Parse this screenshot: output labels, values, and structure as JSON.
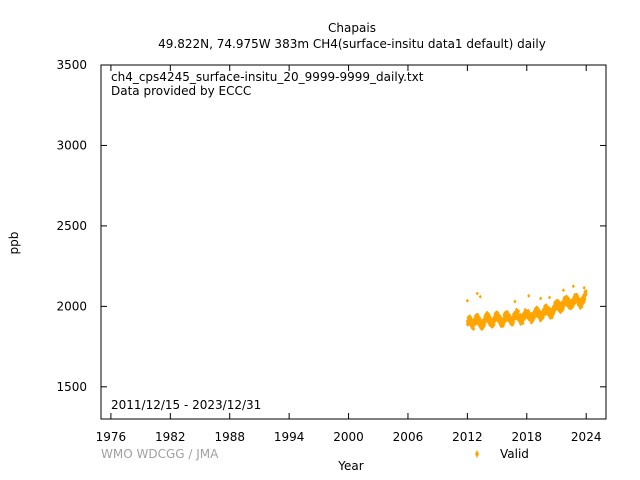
{
  "chart_data": {
    "type": "scatter",
    "title": "Chapais",
    "subtitle": "49.822N, 74.975W 383m    CH4(surface-insitu data1 default) daily",
    "xlabel": "Year",
    "ylabel": "ppb",
    "xlim": [
      1975,
      2026
    ],
    "ylim": [
      1300,
      3500
    ],
    "xticks": [
      1976,
      1982,
      1988,
      1994,
      2000,
      2006,
      2012,
      2018,
      2024
    ],
    "yticks": [
      1500,
      2000,
      2500,
      3000,
      3500
    ],
    "annotations": {
      "filename": "ch4_cps4245_surface-insitu_20_9999-9999_daily.txt",
      "provider": "Data provided by ECCC",
      "period": "2011/12/15 - 2023/12/31",
      "credit": "WMO WDCGG / JMA"
    },
    "legend": {
      "position": "bottom-right"
    },
    "series": [
      {
        "name": "Valid",
        "color": "#ffa500",
        "marker": "diamond",
        "summary": "daily values from 2011.96 to 2024.0; low band ~1870 rising to ~1990, seasonal amplitude ~80 ppb, occasional spikes to ~2120",
        "x": [
          2012.0,
          2012.2,
          2012.4,
          2012.6,
          2012.8,
          2013.0,
          2013.2,
          2013.4,
          2013.6,
          2013.8,
          2014.0,
          2014.2,
          2014.4,
          2014.6,
          2014.8,
          2015.0,
          2015.2,
          2015.4,
          2015.6,
          2015.8,
          2016.0,
          2016.2,
          2016.4,
          2016.6,
          2016.8,
          2017.0,
          2017.2,
          2017.4,
          2017.6,
          2017.8,
          2018.0,
          2018.2,
          2018.4,
          2018.6,
          2018.8,
          2019.0,
          2019.2,
          2019.4,
          2019.6,
          2019.8,
          2020.0,
          2020.2,
          2020.4,
          2020.6,
          2020.8,
          2021.0,
          2021.2,
          2021.4,
          2021.6,
          2021.8,
          2022.0,
          2022.2,
          2022.4,
          2022.6,
          2022.8,
          2023.0,
          2023.2,
          2023.4,
          2023.6,
          2023.8,
          2024.0
        ],
        "y": [
          1905,
          1920,
          1895,
          1880,
          1915,
          1925,
          1910,
          1885,
          1890,
          1920,
          1935,
          1920,
          1895,
          1900,
          1930,
          1940,
          1925,
          1900,
          1905,
          1935,
          1945,
          1930,
          1910,
          1915,
          1945,
          1955,
          1940,
          1915,
          1920,
          1950,
          1960,
          1945,
          1925,
          1930,
          1960,
          1970,
          1955,
          1935,
          1945,
          1975,
          1985,
          1970,
          1950,
          1960,
          1995,
          2015,
          2005,
          1990,
          2000,
          2030,
          2040,
          2025,
          2005,
          2015,
          2045,
          2050,
          2035,
          2015,
          2025,
          2060,
          2070
        ],
        "outliers": [
          {
            "x": 2012.0,
            "y": 2035
          },
          {
            "x": 2013.0,
            "y": 2080
          },
          {
            "x": 2013.3,
            "y": 2060
          },
          {
            "x": 2016.8,
            "y": 2030
          },
          {
            "x": 2018.2,
            "y": 2065
          },
          {
            "x": 2019.4,
            "y": 2050
          },
          {
            "x": 2020.3,
            "y": 2055
          },
          {
            "x": 2021.7,
            "y": 2100
          },
          {
            "x": 2022.7,
            "y": 2125
          },
          {
            "x": 2023.8,
            "y": 2115
          }
        ]
      }
    ]
  }
}
